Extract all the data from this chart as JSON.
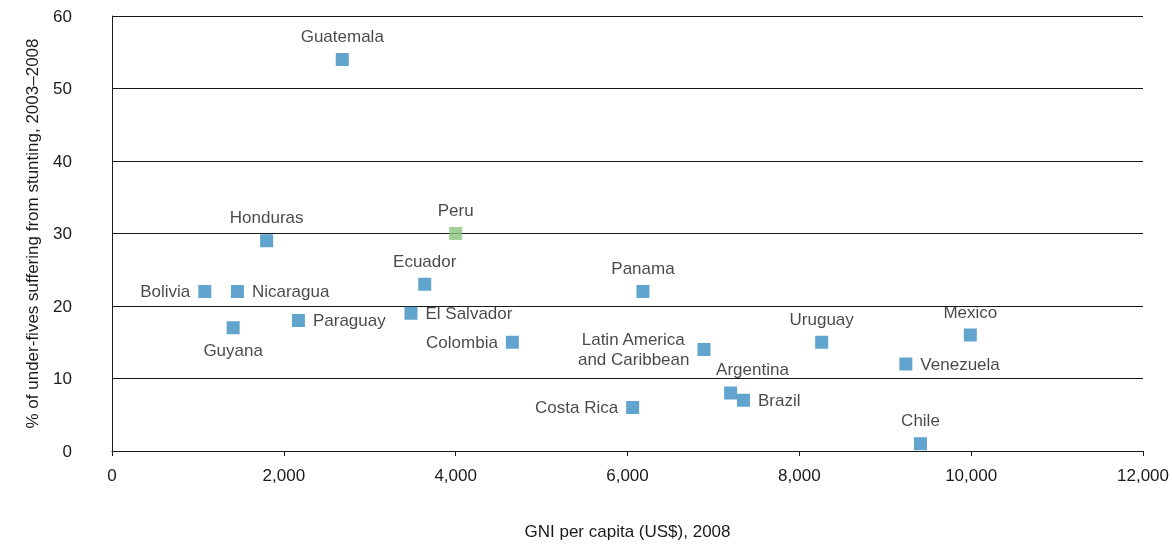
{
  "chart_data": {
    "type": "scatter",
    "xlabel": "GNI per capita (US$), 2008",
    "ylabel": "% of under-fives suffering from stunting, 2003–2008",
    "xlim": [
      0,
      12000
    ],
    "xticks": [
      0,
      {
        "value": 2000,
        "label": "2,000"
      },
      {
        "value": 4000,
        "label": "4,000"
      },
      {
        "value": 6000,
        "label": "6,000"
      },
      {
        "value": 8000,
        "label": "8,000"
      },
      {
        "value": 10000,
        "label": "10,000"
      },
      {
        "value": 12000,
        "label": "12,000"
      }
    ],
    "ylim": [
      0,
      60
    ],
    "yticks": [
      0,
      10,
      20,
      30,
      40,
      50,
      60
    ],
    "grid": "y",
    "marker": "square",
    "series": [
      {
        "name": "Guatemala",
        "color": "#3a8dc1",
        "x": [
          2680
        ],
        "values": [
          54
        ]
      },
      {
        "name": "Honduras",
        "color": "#3a8dc1",
        "x": [
          1800
        ],
        "values": [
          29
        ]
      },
      {
        "name": "Peru",
        "color": "#8cc47f",
        "x": [
          4000
        ],
        "values": [
          30
        ]
      },
      {
        "name": "Bolivia",
        "color": "#3a8dc1",
        "x": [
          1080
        ],
        "values": [
          22
        ]
      },
      {
        "name": "Nicaragua",
        "color": "#3a8dc1",
        "x": [
          1460
        ],
        "values": [
          22
        ]
      },
      {
        "name": "Guyana",
        "color": "#3a8dc1",
        "x": [
          1410
        ],
        "values": [
          17
        ]
      },
      {
        "name": "Paraguay",
        "color": "#3a8dc1",
        "x": [
          2170
        ],
        "values": [
          18
        ]
      },
      {
        "name": "Ecuador",
        "color": "#3a8dc1",
        "x": [
          3640
        ],
        "values": [
          23
        ]
      },
      {
        "name": "El Salvador",
        "color": "#3a8dc1",
        "x": [
          3480
        ],
        "values": [
          19
        ]
      },
      {
        "name": "Colombia",
        "color": "#3a8dc1",
        "x": [
          4660
        ],
        "values": [
          15
        ]
      },
      {
        "name": "Panama",
        "color": "#3a8dc1",
        "x": [
          6180
        ],
        "values": [
          22
        ]
      },
      {
        "name": "Latin America and Caribbean",
        "color": "#3a8dc1",
        "x": [
          6890
        ],
        "values": [
          14
        ]
      },
      {
        "name": "Costa Rica",
        "color": "#3a8dc1",
        "x": [
          6060
        ],
        "values": [
          6
        ]
      },
      {
        "name": "Argentina",
        "color": "#3a8dc1",
        "x": [
          7200
        ],
        "values": [
          8
        ]
      },
      {
        "name": "Brazil",
        "color": "#3a8dc1",
        "x": [
          7350
        ],
        "values": [
          7
        ]
      },
      {
        "name": "Uruguay",
        "color": "#3a8dc1",
        "x": [
          8260
        ],
        "values": [
          15
        ]
      },
      {
        "name": "Venezuela",
        "color": "#3a8dc1",
        "x": [
          9240
        ],
        "values": [
          12
        ]
      },
      {
        "name": "Mexico",
        "color": "#3a8dc1",
        "x": [
          9990
        ],
        "values": [
          16
        ]
      },
      {
        "name": "Chile",
        "color": "#3a8dc1",
        "x": [
          9410
        ],
        "values": [
          1
        ]
      }
    ]
  }
}
